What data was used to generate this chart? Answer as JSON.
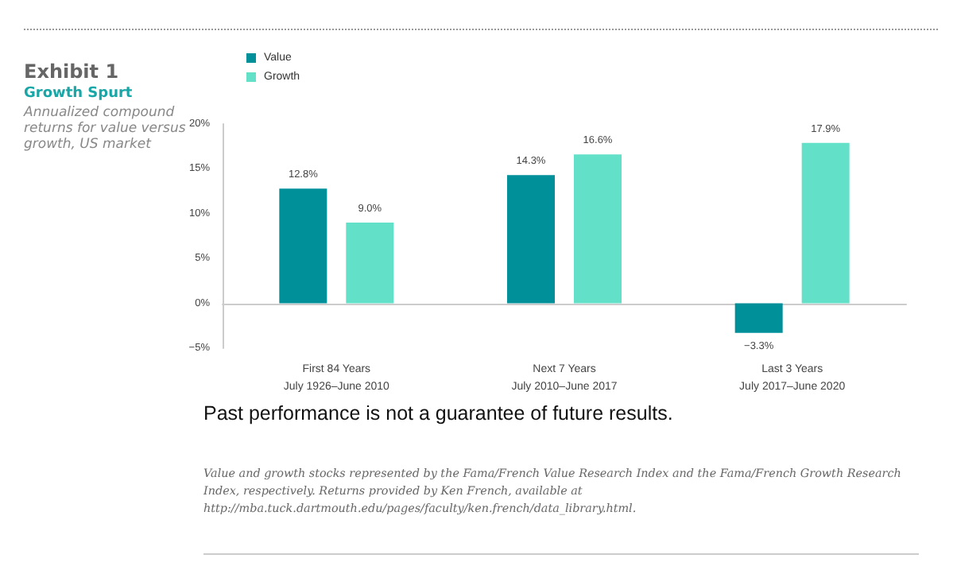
{
  "chart_data": {
    "type": "bar",
    "title": "Exhibit 1",
    "subtitle": "Growth Spurt",
    "annotations": [
      "Annualized compound returns for value versus growth, US market",
      "Past performance is not a guarantee of future results.",
      "Value and growth stocks represented by the Fama/French Value Research Index and the Fama/French Growth Research Index, respectively. Returns provided by Ken French, available at http://mba.tuck.dartmouth.edu/pages/faculty/ken.french/data_library.html."
    ],
    "categories": [
      "First 84 Years\nJuly 1926–June 2010",
      "Next 7 Years\nJuly 2010–June 2017",
      "Last 3 Years\nJuly 2017–June 2020"
    ],
    "series": [
      {
        "name": "Value",
        "color": "#00909a",
        "values": [
          12.8,
          14.3,
          -3.3
        ],
        "value_labels": [
          "12.8%",
          "14.3%",
          "−3.3%"
        ]
      },
      {
        "name": "Growth",
        "color": "#62e0c8",
        "values": [
          9.0,
          16.6,
          17.9
        ],
        "value_labels": [
          "9.0%",
          "16.6%",
          "17.9%"
        ]
      }
    ],
    "ylim": [
      -5,
      20
    ],
    "yticks": [
      {
        "value": -5,
        "label": "−5%"
      },
      {
        "value": 0,
        "label": "0%"
      },
      {
        "value": 5,
        "label": "5%"
      },
      {
        "value": 10,
        "label": "10%"
      },
      {
        "value": 15,
        "label": "15%"
      },
      {
        "value": 20,
        "label": "20%"
      }
    ],
    "legend": "top left"
  }
}
